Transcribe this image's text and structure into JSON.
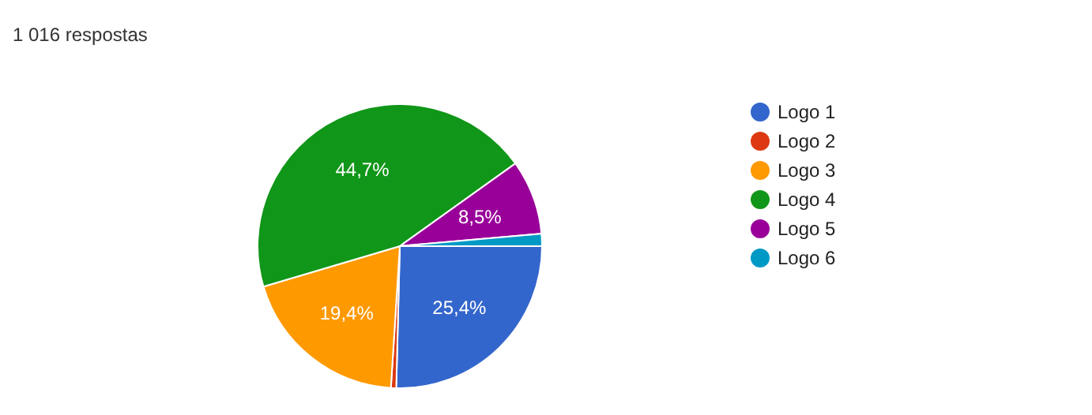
{
  "chart_data": {
    "type": "pie",
    "title": "1 016 respostas",
    "categories": [
      "Logo 1",
      "Logo 2",
      "Logo 3",
      "Logo 4",
      "Logo 5",
      "Logo 6"
    ],
    "values": [
      25.4,
      0.6,
      19.4,
      44.7,
      8.5,
      1.4
    ],
    "value_labels": [
      "25,4%",
      null,
      "19,4%",
      "44,7%",
      "8,5%",
      null
    ],
    "colors": [
      "#3366cc",
      "#dc3912",
      "#ff9900",
      "#109618",
      "#990099",
      "#0099c6"
    ],
    "legend": "right"
  }
}
